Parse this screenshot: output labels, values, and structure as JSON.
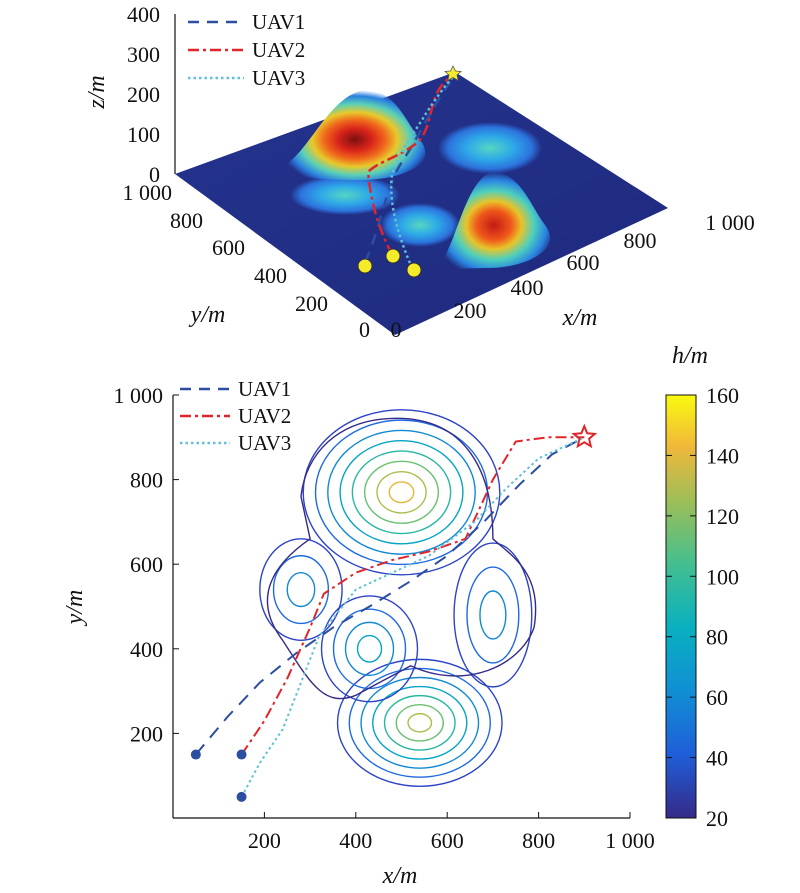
{
  "chart_data": [
    {
      "type": "surface",
      "xlabel": "x/m",
      "ylabel": "y/m",
      "zlabel": "z/m",
      "xticks": [
        "0",
        "200",
        "400",
        "600",
        "800",
        "1 000"
      ],
      "yticks": [
        "0",
        "200",
        "400",
        "600",
        "800",
        "1 000"
      ],
      "zticks": [
        "0",
        "100",
        "200",
        "300",
        "400"
      ],
      "xlim": [
        0,
        1000
      ],
      "ylim": [
        0,
        1000
      ],
      "zlim": [
        0,
        400
      ],
      "legend_position": "top-left",
      "series": [
        {
          "name": "UAV1",
          "color": "#2b4ea0",
          "style": "dashed"
        },
        {
          "name": "UAV2",
          "color": "#e0262b",
          "style": "dash-dot"
        },
        {
          "name": "UAV3",
          "color": "#5fc0d8",
          "style": "dotted"
        }
      ],
      "peaks": [
        {
          "x": 500,
          "y": 760,
          "height": 160
        },
        {
          "x": 540,
          "y": 220,
          "height": 120
        },
        {
          "x": 280,
          "y": 530,
          "height": 55
        },
        {
          "x": 430,
          "y": 390,
          "height": 50
        },
        {
          "x": 700,
          "y": 480,
          "height": 60
        }
      ],
      "start_points": [
        [
          50,
          150
        ],
        [
          150,
          150
        ],
        [
          150,
          50
        ]
      ],
      "goal": [
        900,
        900
      ]
    },
    {
      "type": "contour",
      "xlabel": "x/m",
      "ylabel": "y/m",
      "xticks": [
        "200",
        "400",
        "600",
        "800",
        "1 000"
      ],
      "yticks": [
        "200",
        "400",
        "600",
        "800",
        "1 000"
      ],
      "xlim": [
        0,
        1000
      ],
      "ylim": [
        0,
        1000
      ],
      "legend_position": "top-left",
      "colorbar": {
        "label": "h/m",
        "ticks": [
          "20",
          "40",
          "60",
          "80",
          "100",
          "120",
          "140",
          "160"
        ],
        "range": [
          20,
          160
        ]
      },
      "series": [
        {
          "name": "UAV1",
          "color": "#2b4ea0",
          "style": "dashed",
          "points": [
            [
              50,
              150
            ],
            [
              120,
              240
            ],
            [
              190,
              320
            ],
            [
              270,
              390
            ],
            [
              350,
              450
            ],
            [
              430,
              500
            ],
            [
              520,
              560
            ],
            [
              600,
              620
            ],
            [
              680,
              700
            ],
            [
              760,
              790
            ],
            [
              830,
              860
            ],
            [
              900,
              900
            ]
          ]
        },
        {
          "name": "UAV2",
          "color": "#e0262b",
          "style": "dash-dot",
          "points": [
            [
              150,
              150
            ],
            [
              200,
              230
            ],
            [
              250,
              330
            ],
            [
              300,
              450
            ],
            [
              330,
              530
            ],
            [
              400,
              580
            ],
            [
              480,
              610
            ],
            [
              560,
              630
            ],
            [
              640,
              660
            ],
            [
              700,
              800
            ],
            [
              750,
              890
            ],
            [
              820,
              900
            ],
            [
              900,
              900
            ]
          ]
        },
        {
          "name": "UAV3",
          "color": "#5fc0d8",
          "style": "dotted",
          "points": [
            [
              150,
              50
            ],
            [
              190,
              130
            ],
            [
              240,
              210
            ],
            [
              280,
              320
            ],
            [
              320,
              430
            ],
            [
              400,
              540
            ],
            [
              480,
              580
            ],
            [
              560,
              620
            ],
            [
              660,
              700
            ],
            [
              730,
              780
            ],
            [
              800,
              850
            ],
            [
              900,
              900
            ]
          ]
        }
      ],
      "start_points": [
        [
          50,
          150
        ],
        [
          150,
          150
        ],
        [
          150,
          50
        ]
      ],
      "goal": [
        900,
        900
      ]
    }
  ]
}
